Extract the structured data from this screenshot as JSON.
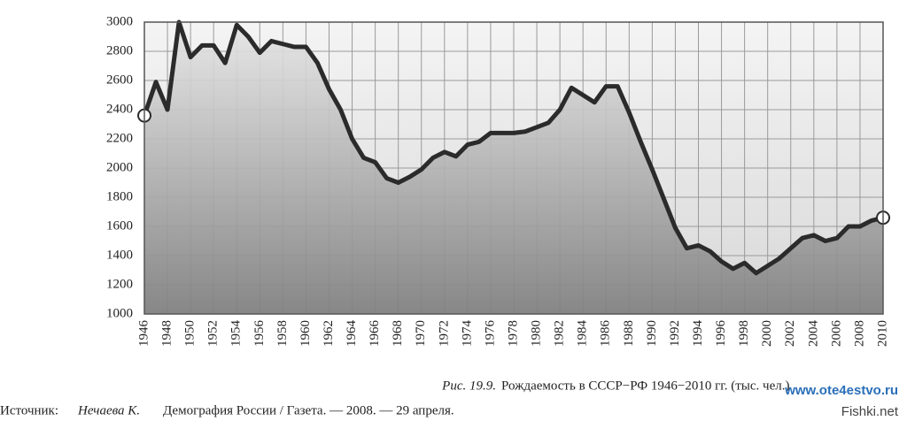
{
  "chart_data": {
    "type": "line",
    "x": [
      1946,
      1947,
      1948,
      1949,
      1950,
      1951,
      1952,
      1953,
      1954,
      1955,
      1956,
      1957,
      1958,
      1959,
      1960,
      1961,
      1962,
      1963,
      1964,
      1965,
      1966,
      1967,
      1968,
      1969,
      1970,
      1971,
      1972,
      1973,
      1974,
      1975,
      1976,
      1977,
      1978,
      1979,
      1980,
      1981,
      1982,
      1983,
      1984,
      1985,
      1986,
      1987,
      1988,
      1989,
      1990,
      1991,
      1992,
      1993,
      1994,
      1995,
      1996,
      1997,
      1998,
      1999,
      2000,
      2001,
      2002,
      2003,
      2004,
      2005,
      2006,
      2007,
      2008,
      2009,
      2010
    ],
    "values": [
      2360,
      2590,
      2400,
      3000,
      2760,
      2840,
      2840,
      2720,
      2980,
      2900,
      2790,
      2870,
      2850,
      2830,
      2830,
      2720,
      2540,
      2400,
      2200,
      2070,
      2040,
      1930,
      1900,
      1940,
      1990,
      2070,
      2110,
      2080,
      2160,
      2180,
      2240,
      2240,
      2240,
      2250,
      2280,
      2310,
      2400,
      2550,
      2500,
      2450,
      2560,
      2560,
      2380,
      2180,
      1990,
      1790,
      1590,
      1450,
      1470,
      1430,
      1360,
      1310,
      1350,
      1280,
      1330,
      1380,
      1450,
      1520,
      1540,
      1500,
      1520,
      1600,
      1600,
      1640,
      1660
    ],
    "color": "#2b2b2b",
    "xlim": [
      1946,
      2010
    ],
    "xticks": [
      1946,
      1948,
      1950,
      1952,
      1954,
      1956,
      1958,
      1960,
      1962,
      1964,
      1966,
      1968,
      1970,
      1972,
      1974,
      1976,
      1978,
      1980,
      1982,
      1984,
      1986,
      1988,
      1990,
      1992,
      1994,
      1996,
      1998,
      2000,
      2002,
      2004,
      2006,
      2008,
      2010
    ],
    "ylim": [
      1000,
      3000
    ],
    "yticks": [
      1000,
      1200,
      1400,
      1600,
      1800,
      2000,
      2200,
      2400,
      2600,
      2800,
      3000
    ],
    "grid": true,
    "caption_label": "Рис. 19.9.",
    "caption": "Рождаемость в СССР−РФ 1946−2010 гг. (тыс. чел.)",
    "source_label": "Источник:",
    "source_author": "Нечаева К.",
    "source_text": "Демография России / Газета. — 2008. — 29 апреля."
  },
  "watermarks": [
    "www.ote4estvo.ru",
    "Fishki.net"
  ]
}
